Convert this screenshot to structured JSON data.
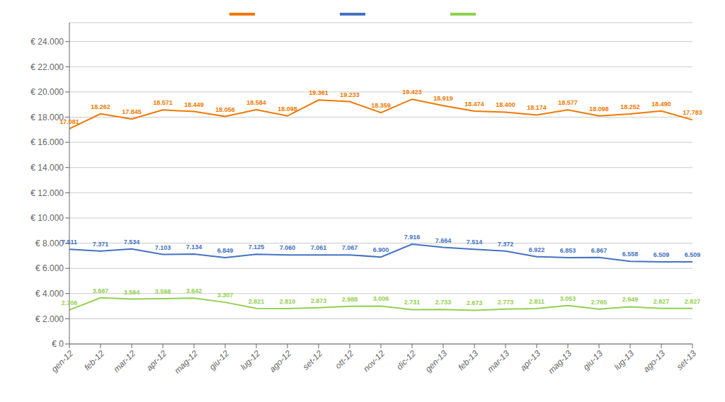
{
  "chart_data": {
    "type": "line",
    "categories": [
      "gen-12",
      "feb-12",
      "mar-12",
      "apr-12",
      "mag-12",
      "giu-12",
      "lug-12",
      "ago-12",
      "set-12",
      "ott-12",
      "nov-12",
      "dic-12",
      "gen-13",
      "feb-13",
      "mar-13",
      "apr-13",
      "mag-13",
      "giu-13",
      "lug-13",
      "ago-13",
      "set-13"
    ],
    "series": [
      {
        "color": "#f07800",
        "values": [
          17081,
          18262,
          17845,
          18571,
          18449,
          18056,
          18584,
          18098,
          19361,
          19233,
          18359,
          19423,
          18919,
          18474,
          18400,
          18174,
          18577,
          18098,
          18252,
          18490,
          17783
        ],
        "value_labels": [
          "17.081",
          "18.262",
          "17.845",
          "18.571",
          "18.449",
          "18.056",
          "18.584",
          "18.098",
          "19.361",
          "19.233",
          "18.359",
          "19.423",
          "18.919",
          "18.474",
          "18.400",
          "18.174",
          "18.577",
          "18.098",
          "18.252",
          "18.490",
          "17.783"
        ]
      },
      {
        "color": "#4472c4",
        "values": [
          7511,
          7371,
          7534,
          7103,
          7134,
          6849,
          7125,
          7060,
          7061,
          7067,
          6900,
          7916,
          7664,
          7514,
          7372,
          6922,
          6853,
          6867,
          6558,
          6509,
          6509
        ],
        "value_labels": [
          "7.511",
          "7.371",
          "7.534",
          "7.103",
          "7.134",
          "6.849",
          "7.125",
          "7.060",
          "7.061",
          "7.067",
          "6.900",
          "7.916",
          "7.664",
          "7.514",
          "7.372",
          "6.922",
          "6.853",
          "6.867",
          "6.558",
          "6.509",
          "6.509"
        ]
      },
      {
        "color": "#92d050",
        "values": [
          2706,
          3667,
          3564,
          3598,
          3642,
          3307,
          2821,
          2810,
          2873,
          2988,
          3006,
          2731,
          2733,
          2673,
          2773,
          2811,
          3053,
          2765,
          2949,
          2827,
          2827
        ],
        "value_labels": [
          "2.706",
          "3.667",
          "3.564",
          "3.598",
          "3.642",
          "3.307",
          "2.821",
          "2.810",
          "2.873",
          "2.988",
          "3.006",
          "2.731",
          "2.733",
          "2.673",
          "2.773",
          "2.811",
          "3.053",
          "2.765",
          "2.949",
          "2.827",
          "2.827"
        ]
      }
    ],
    "ylim": [
      0,
      25500
    ],
    "yticks": [
      {
        "value": 0,
        "label": "€ 0"
      },
      {
        "value": 2000,
        "label": "€ 2.000"
      },
      {
        "value": 4000,
        "label": "€ 4.000"
      },
      {
        "value": 6000,
        "label": "€ 6.000"
      },
      {
        "value": 8000,
        "label": "€ 8.000"
      },
      {
        "value": 10000,
        "label": "€ 10.000"
      },
      {
        "value": 12000,
        "label": "€ 12.000"
      },
      {
        "value": 14000,
        "label": "€ 14.000"
      },
      {
        "value": 16000,
        "label": "€ 16.000"
      },
      {
        "value": 18000,
        "label": "€ 18.000"
      },
      {
        "value": 20000,
        "label": "€ 20.000"
      },
      {
        "value": 22000,
        "label": "€ 22.000"
      },
      {
        "value": 24000,
        "label": "€ 24.000"
      }
    ],
    "grid": true,
    "legend": "top",
    "data_labels": true
  }
}
